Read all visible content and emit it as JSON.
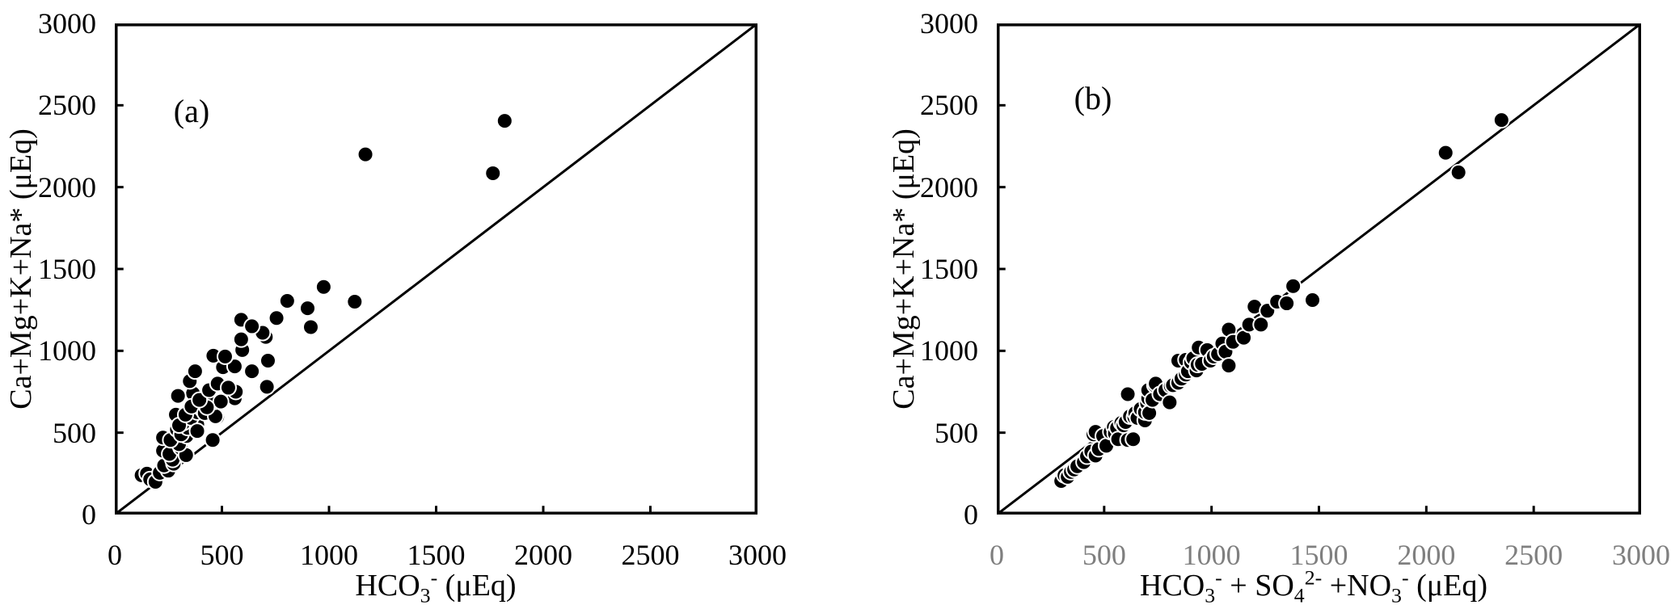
{
  "figure": {
    "background": "#ffffff",
    "text_color": "#000000"
  },
  "chart_data": [
    {
      "type": "scatter",
      "panel_label": "(a)",
      "ylabel": "Ca+Mg+K+Na* (μEq)",
      "xlabel_segments": [
        {
          "t": "HCO"
        },
        {
          "t": "3",
          "s": "sub"
        },
        {
          "t": "-",
          "s": "sup"
        },
        {
          "t": " (μEq)"
        }
      ],
      "xlim": [
        0,
        3000
      ],
      "ylim": [
        0,
        3000
      ],
      "x_ticks": [
        0,
        500,
        1000,
        1500,
        2000,
        2500,
        3000
      ],
      "y_ticks": [
        0,
        500,
        1000,
        1500,
        2000,
        2500,
        3000
      ],
      "x_tick_color": "#000000",
      "y_tick_color": "#000000",
      "grid": false,
      "legend": "none",
      "ref_line": {
        "from": [
          0,
          0
        ],
        "to": [
          3000,
          3000
        ],
        "color": "#000000"
      },
      "marker": {
        "fill": "#000000",
        "outline": "#ffffff",
        "radius_px": 9.5
      },
      "points": [
        [
          125,
          240
        ],
        [
          150,
          250
        ],
        [
          165,
          215
        ],
        [
          190,
          200
        ],
        [
          210,
          255
        ],
        [
          250,
          268
        ],
        [
          230,
          300
        ],
        [
          275,
          310
        ],
        [
          270,
          335
        ],
        [
          225,
          390
        ],
        [
          255,
          370
        ],
        [
          308,
          408
        ],
        [
          333,
          363
        ],
        [
          300,
          430
        ],
        [
          225,
          470
        ],
        [
          260,
          455
        ],
        [
          290,
          520
        ],
        [
          335,
          480
        ],
        [
          310,
          490
        ],
        [
          340,
          530
        ],
        [
          320,
          560
        ],
        [
          385,
          550
        ],
        [
          285,
          610
        ],
        [
          355,
          590
        ],
        [
          385,
          625
        ],
        [
          478,
          595
        ],
        [
          457,
          455
        ],
        [
          385,
          510
        ],
        [
          300,
          545
        ],
        [
          410,
          640
        ],
        [
          365,
          740
        ],
        [
          295,
          725
        ],
        [
          330,
          610
        ],
        [
          358,
          660
        ],
        [
          420,
          620
        ],
        [
          470,
          600
        ],
        [
          560,
          710
        ],
        [
          565,
          750
        ],
        [
          465,
          690
        ],
        [
          495,
          690
        ],
        [
          430,
          655
        ],
        [
          395,
          700
        ],
        [
          440,
          760
        ],
        [
          350,
          815
        ],
        [
          480,
          800
        ],
        [
          530,
          775
        ],
        [
          710,
          780
        ],
        [
          375,
          875
        ],
        [
          505,
          900
        ],
        [
          560,
          905
        ],
        [
          640,
          875
        ],
        [
          460,
          970
        ],
        [
          515,
          965
        ],
        [
          595,
          1005
        ],
        [
          715,
          940
        ],
        [
          590,
          1070
        ],
        [
          705,
          1085
        ],
        [
          690,
          1110
        ],
        [
          915,
          1145
        ],
        [
          590,
          1190
        ],
        [
          640,
          1150
        ],
        [
          755,
          1200
        ],
        [
          805,
          1305
        ],
        [
          900,
          1260
        ],
        [
          975,
          1390
        ],
        [
          1120,
          1300
        ],
        [
          1170,
          2200
        ],
        [
          1765,
          2085
        ],
        [
          1820,
          2405
        ]
      ]
    },
    {
      "type": "scatter",
      "panel_label": "(b)",
      "ylabel": "Ca+Mg+K+Na* (μEq)",
      "xlabel_segments": [
        {
          "t": "HCO"
        },
        {
          "t": "3",
          "s": "sub"
        },
        {
          "t": "-",
          "s": "sup"
        },
        {
          "t": " + SO"
        },
        {
          "t": "4",
          "s": "sub"
        },
        {
          "t": "2-",
          "s": "sup"
        },
        {
          "t": " +NO"
        },
        {
          "t": "3",
          "s": "sub"
        },
        {
          "t": "-",
          "s": "sup"
        },
        {
          "t": " (μEq)"
        }
      ],
      "xlim": [
        0,
        3000
      ],
      "ylim": [
        0,
        3000
      ],
      "x_ticks": [
        0,
        500,
        1000,
        1500,
        2000,
        2500,
        3000
      ],
      "y_ticks": [
        0,
        500,
        1000,
        1500,
        2000,
        2500,
        3000
      ],
      "x_tick_color": "#7f7f7f",
      "y_tick_color": "#000000",
      "grid": false,
      "legend": "none",
      "ref_line": {
        "from": [
          0,
          0
        ],
        "to": [
          3000,
          3000
        ],
        "color": "#000000"
      },
      "marker": {
        "fill": "#000000",
        "outline": "#ffffff",
        "radius_px": 9.5
      },
      "points": [
        [
          300,
          205
        ],
        [
          315,
          240
        ],
        [
          330,
          230
        ],
        [
          345,
          260
        ],
        [
          360,
          275
        ],
        [
          375,
          295
        ],
        [
          405,
          320
        ],
        [
          420,
          355
        ],
        [
          440,
          385
        ],
        [
          460,
          360
        ],
        [
          475,
          400
        ],
        [
          450,
          490
        ],
        [
          460,
          505
        ],
        [
          495,
          480
        ],
        [
          510,
          420
        ],
        [
          530,
          505
        ],
        [
          545,
          535
        ],
        [
          550,
          495
        ],
        [
          560,
          530
        ],
        [
          565,
          460
        ],
        [
          580,
          560
        ],
        [
          590,
          545
        ],
        [
          600,
          565
        ],
        [
          610,
          455
        ],
        [
          610,
          735
        ],
        [
          620,
          600
        ],
        [
          635,
          460
        ],
        [
          640,
          595
        ],
        [
          645,
          620
        ],
        [
          655,
          590
        ],
        [
          670,
          645
        ],
        [
          690,
          575
        ],
        [
          690,
          625
        ],
        [
          700,
          680
        ],
        [
          705,
          710
        ],
        [
          705,
          760
        ],
        [
          710,
          620
        ],
        [
          725,
          700
        ],
        [
          735,
          790
        ],
        [
          740,
          800
        ],
        [
          760,
          735
        ],
        [
          785,
          760
        ],
        [
          805,
          685
        ],
        [
          810,
          785
        ],
        [
          820,
          790
        ],
        [
          845,
          805
        ],
        [
          845,
          940
        ],
        [
          860,
          830
        ],
        [
          880,
          855
        ],
        [
          880,
          945
        ],
        [
          890,
          875
        ],
        [
          905,
          930
        ],
        [
          915,
          955
        ],
        [
          930,
          880
        ],
        [
          935,
          915
        ],
        [
          940,
          1020
        ],
        [
          955,
          920
        ],
        [
          980,
          1005
        ],
        [
          995,
          940
        ],
        [
          1010,
          965
        ],
        [
          1030,
          980
        ],
        [
          1050,
          1045
        ],
        [
          1065,
          995
        ],
        [
          1080,
          910
        ],
        [
          1080,
          1130
        ],
        [
          1100,
          1055
        ],
        [
          1150,
          1080
        ],
        [
          1175,
          1160
        ],
        [
          1230,
          1160
        ],
        [
          1200,
          1270
        ],
        [
          1260,
          1245
        ],
        [
          1305,
          1300
        ],
        [
          1350,
          1290
        ],
        [
          1380,
          1395
        ],
        [
          1470,
          1310
        ],
        [
          2090,
          2210
        ],
        [
          2150,
          2090
        ],
        [
          2350,
          2410
        ]
      ]
    }
  ]
}
